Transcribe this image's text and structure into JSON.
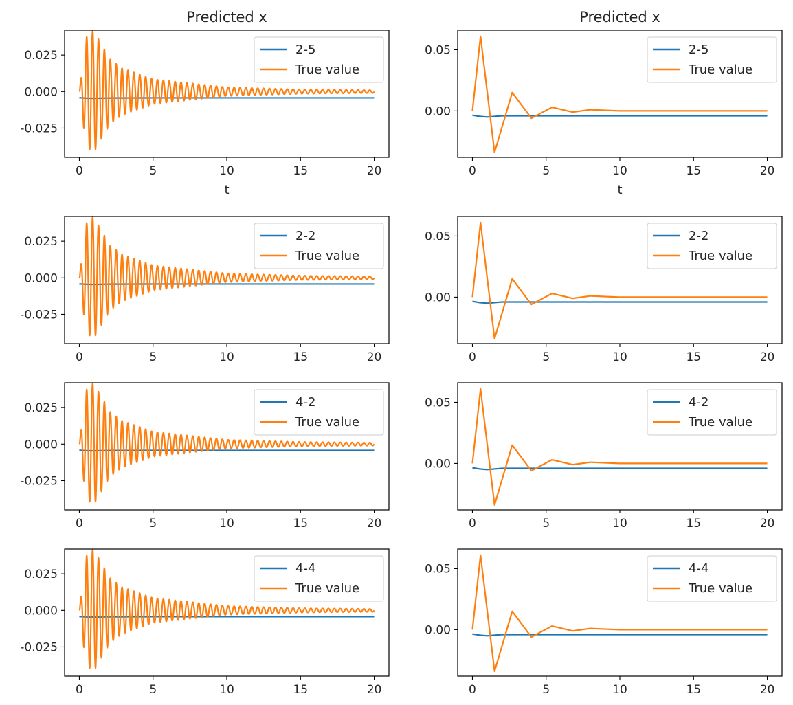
{
  "figure": {
    "colors": {
      "series_1": "#1f77b4",
      "series_2": "#ff7f0e",
      "axes": "#000000",
      "text": "#262626"
    }
  },
  "chart_data": [
    {
      "type": "line",
      "row": 1,
      "col": 1,
      "title": "Predicted x",
      "xlabel": "t",
      "ylabel": "",
      "xlim": [
        -1,
        21
      ],
      "ylim": [
        -0.045,
        0.042
      ],
      "x_ticks": [
        "0",
        "5",
        "10",
        "15",
        "20"
      ],
      "y_ticks": [
        "0.025",
        "0.000",
        "-0.025"
      ],
      "y_tick_values": [
        0.025,
        0.0,
        -0.025
      ],
      "legend_position": "upper right",
      "grid": false,
      "series": [
        {
          "name": "2-5",
          "x": [
            0,
            0.5,
            1,
            2,
            5,
            10,
            15,
            20
          ],
          "y": [
            -0.0042,
            -0.0045,
            -0.0046,
            -0.0044,
            -0.0043,
            -0.0043,
            -0.0043,
            -0.0043
          ]
        },
        {
          "name": "True value",
          "x": [
            0,
            0.45,
            0.95,
            2.1,
            2.9,
            5,
            10,
            15,
            20
          ],
          "y": [
            0.0,
            0.037,
            -0.042,
            0.022,
            0.016,
            0.0085,
            0.003,
            0.0015,
            0.001
          ],
          "oscillation_period": 0.4
        }
      ]
    },
    {
      "type": "line",
      "row": 1,
      "col": 2,
      "title": "Predicted x",
      "xlabel": "t",
      "ylabel": "",
      "xlim": [
        -1,
        21
      ],
      "ylim": [
        -0.038,
        0.066
      ],
      "x_ticks": [
        "0",
        "5",
        "10",
        "15",
        "20"
      ],
      "y_ticks": [
        "0.05",
        "0.00"
      ],
      "y_tick_values": [
        0.05,
        0.0
      ],
      "legend_position": "upper right",
      "grid": false,
      "series": [
        {
          "name": "2-5",
          "x": [
            0,
            0.5,
            1,
            2,
            5,
            10,
            15,
            20
          ],
          "y": [
            -0.0035,
            -0.0045,
            -0.005,
            -0.004,
            -0.004,
            -0.004,
            -0.004,
            -0.004
          ]
        },
        {
          "name": "True value",
          "x": [
            0,
            0.55,
            1.5,
            2.7,
            4,
            5.4,
            6.8,
            8,
            10,
            20
          ],
          "y": [
            0.0,
            0.061,
            -0.034,
            0.015,
            -0.006,
            0.003,
            -0.001,
            0.001,
            0.0,
            0.0
          ]
        }
      ]
    },
    {
      "type": "line",
      "row": 2,
      "col": 1,
      "title": "",
      "xlabel": "",
      "ylabel": "",
      "xlim": [
        -1,
        21
      ],
      "ylim": [
        -0.045,
        0.042
      ],
      "x_ticks": [
        "0",
        "5",
        "10",
        "15",
        "20"
      ],
      "y_ticks": [
        "0.025",
        "0.000",
        "-0.025"
      ],
      "y_tick_values": [
        0.025,
        0.0,
        -0.025
      ],
      "legend_position": "upper right",
      "grid": false,
      "series": [
        {
          "name": "2-2",
          "x": [
            0,
            0.5,
            1,
            2,
            5,
            10,
            15,
            20
          ],
          "y": [
            -0.0042,
            -0.0045,
            -0.0046,
            -0.0044,
            -0.0043,
            -0.0043,
            -0.0043,
            -0.0043
          ]
        },
        {
          "name": "True value",
          "x": [
            0,
            0.45,
            0.95,
            2.1,
            2.9,
            5,
            10,
            15,
            20
          ],
          "y": [
            0.0,
            0.037,
            -0.042,
            0.022,
            0.016,
            0.0085,
            0.003,
            0.0015,
            0.001
          ],
          "oscillation_period": 0.4
        }
      ]
    },
    {
      "type": "line",
      "row": 2,
      "col": 2,
      "title": "",
      "xlabel": "",
      "ylabel": "",
      "xlim": [
        -1,
        21
      ],
      "ylim": [
        -0.038,
        0.066
      ],
      "x_ticks": [
        "0",
        "5",
        "10",
        "15",
        "20"
      ],
      "y_ticks": [
        "0.05",
        "0.00"
      ],
      "y_tick_values": [
        0.05,
        0.0
      ],
      "legend_position": "upper right",
      "grid": false,
      "series": [
        {
          "name": "2-2",
          "x": [
            0,
            0.5,
            1,
            2,
            5,
            10,
            15,
            20
          ],
          "y": [
            -0.0035,
            -0.0045,
            -0.005,
            -0.004,
            -0.004,
            -0.004,
            -0.004,
            -0.004
          ]
        },
        {
          "name": "True value",
          "x": [
            0,
            0.55,
            1.5,
            2.7,
            4,
            5.4,
            6.8,
            8,
            10,
            20
          ],
          "y": [
            0.0,
            0.061,
            -0.034,
            0.015,
            -0.006,
            0.003,
            -0.001,
            0.001,
            0.0,
            0.0
          ]
        }
      ]
    },
    {
      "type": "line",
      "row": 3,
      "col": 1,
      "title": "",
      "xlabel": "",
      "ylabel": "",
      "xlim": [
        -1,
        21
      ],
      "ylim": [
        -0.045,
        0.042
      ],
      "x_ticks": [
        "0",
        "5",
        "10",
        "15",
        "20"
      ],
      "y_ticks": [
        "0.025",
        "0.000",
        "-0.025"
      ],
      "y_tick_values": [
        0.025,
        0.0,
        -0.025
      ],
      "legend_position": "upper right",
      "grid": false,
      "series": [
        {
          "name": "4-2",
          "x": [
            0,
            0.5,
            1,
            2,
            5,
            10,
            15,
            20
          ],
          "y": [
            -0.0042,
            -0.0045,
            -0.0046,
            -0.0044,
            -0.0043,
            -0.0043,
            -0.0043,
            -0.0043
          ]
        },
        {
          "name": "True value",
          "x": [
            0,
            0.45,
            0.95,
            2.1,
            2.9,
            5,
            10,
            15,
            20
          ],
          "y": [
            0.0,
            0.037,
            -0.042,
            0.022,
            0.016,
            0.0085,
            0.003,
            0.0015,
            0.001
          ],
          "oscillation_period": 0.4
        }
      ]
    },
    {
      "type": "line",
      "row": 3,
      "col": 2,
      "title": "",
      "xlabel": "",
      "ylabel": "",
      "xlim": [
        -1,
        21
      ],
      "ylim": [
        -0.038,
        0.066
      ],
      "x_ticks": [
        "0",
        "5",
        "10",
        "15",
        "20"
      ],
      "y_ticks": [
        "0.05",
        "0.00"
      ],
      "y_tick_values": [
        0.05,
        0.0
      ],
      "legend_position": "upper right",
      "grid": false,
      "series": [
        {
          "name": "4-2",
          "x": [
            0,
            0.5,
            1,
            2,
            5,
            10,
            15,
            20
          ],
          "y": [
            -0.0035,
            -0.0045,
            -0.005,
            -0.004,
            -0.004,
            -0.004,
            -0.004,
            -0.004
          ]
        },
        {
          "name": "True value",
          "x": [
            0,
            0.55,
            1.5,
            2.7,
            4,
            5.4,
            6.8,
            8,
            10,
            20
          ],
          "y": [
            0.0,
            0.061,
            -0.034,
            0.015,
            -0.006,
            0.003,
            -0.001,
            0.001,
            0.0,
            0.0
          ]
        }
      ]
    },
    {
      "type": "line",
      "row": 4,
      "col": 1,
      "title": "",
      "xlabel": "",
      "ylabel": "",
      "xlim": [
        -1,
        21
      ],
      "ylim": [
        -0.045,
        0.042
      ],
      "x_ticks": [
        "0",
        "5",
        "10",
        "15",
        "20"
      ],
      "y_ticks": [
        "0.025",
        "0.000",
        "-0.025"
      ],
      "y_tick_values": [
        0.025,
        0.0,
        -0.025
      ],
      "legend_position": "upper right",
      "grid": false,
      "series": [
        {
          "name": "4-4",
          "x": [
            0,
            0.5,
            1,
            2,
            5,
            10,
            15,
            20
          ],
          "y": [
            -0.0042,
            -0.0045,
            -0.0046,
            -0.0044,
            -0.0043,
            -0.0043,
            -0.0043,
            -0.0043
          ]
        },
        {
          "name": "True value",
          "x": [
            0,
            0.45,
            0.95,
            2.1,
            2.9,
            5,
            10,
            15,
            20
          ],
          "y": [
            0.0,
            0.037,
            -0.042,
            0.022,
            0.016,
            0.0085,
            0.003,
            0.0015,
            0.001
          ],
          "oscillation_period": 0.4
        }
      ]
    },
    {
      "type": "line",
      "row": 4,
      "col": 2,
      "title": "",
      "xlabel": "",
      "ylabel": "",
      "xlim": [
        -1,
        21
      ],
      "ylim": [
        -0.038,
        0.066
      ],
      "x_ticks": [
        "0",
        "5",
        "10",
        "15",
        "20"
      ],
      "y_ticks": [
        "0.05",
        "0.00"
      ],
      "y_tick_values": [
        0.05,
        0.0
      ],
      "legend_position": "upper right",
      "grid": false,
      "series": [
        {
          "name": "4-4",
          "x": [
            0,
            0.5,
            1,
            2,
            5,
            10,
            15,
            20
          ],
          "y": [
            -0.0035,
            -0.0045,
            -0.005,
            -0.004,
            -0.004,
            -0.004,
            -0.004,
            -0.004
          ]
        },
        {
          "name": "True value",
          "x": [
            0,
            0.55,
            1.5,
            2.7,
            4,
            5.4,
            6.8,
            8,
            10,
            20
          ],
          "y": [
            0.0,
            0.061,
            -0.034,
            0.015,
            -0.006,
            0.003,
            -0.001,
            0.001,
            0.0,
            0.0
          ]
        }
      ]
    }
  ]
}
